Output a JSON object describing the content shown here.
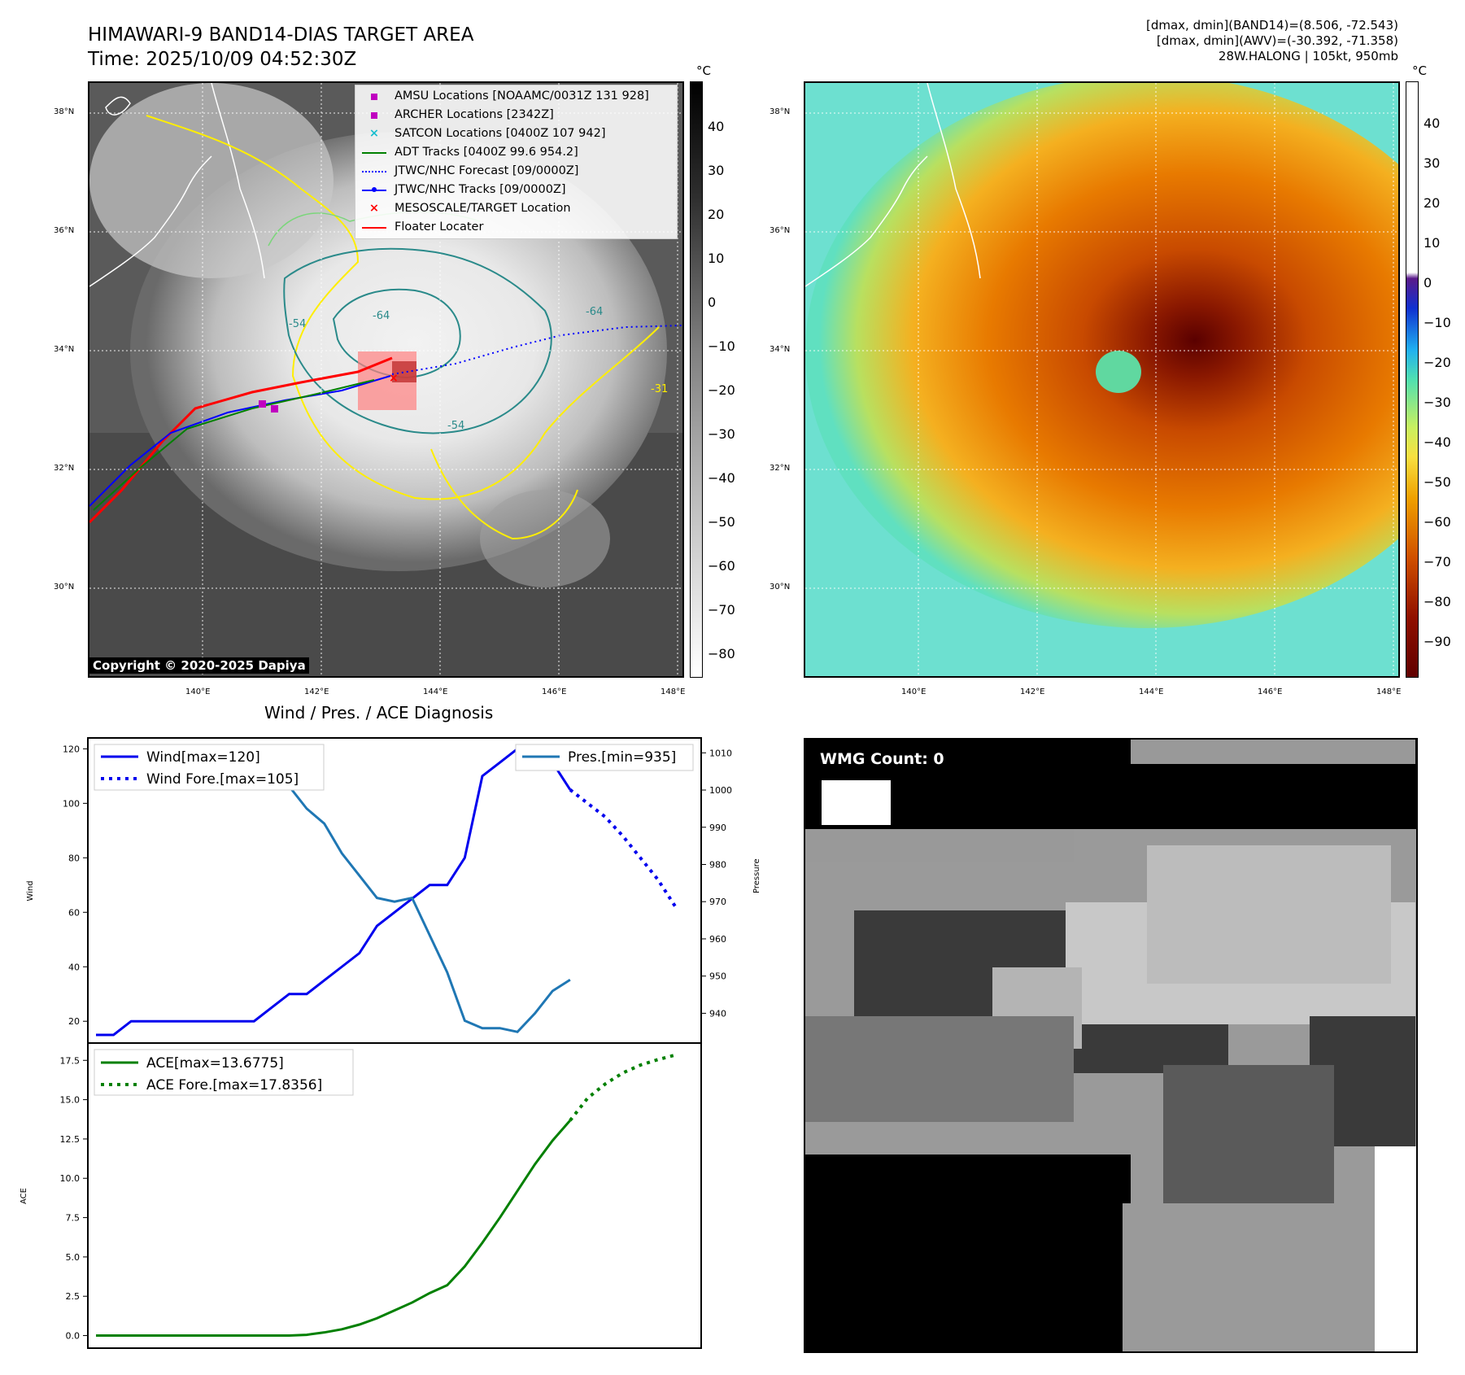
{
  "header": {
    "title_line1": "HIMAWARI-9 BAND14-DIAS TARGET AREA",
    "title_line2": "Time: 2025/10/09 04:52:30Z",
    "info_line1": "[dmax, dmin](BAND14)=(8.506, -72.543)",
    "info_line2": "[dmax, dmin](AWV)=(-30.392, -71.358)",
    "info_line3": "28W.HALONG | 105kt, 950mb"
  },
  "map": {
    "lat_labels": [
      "38°N",
      "36°N",
      "34°N",
      "32°N",
      "30°N"
    ],
    "lon_labels": [
      "140°E",
      "142°E",
      "144°E",
      "146°E",
      "148°E"
    ],
    "copyright": "Copyright © 2020-2025 Dapiya",
    "contour_labels": [
      "-64",
      "-64",
      "-54",
      "-54",
      "-31"
    ],
    "legend": [
      {
        "label": "AMSU Locations [NOAAMC/0031Z 131 928]",
        "color": "#c000c0",
        "symbol": "square"
      },
      {
        "label": "ARCHER Locations [2342Z]",
        "color": "#c000c0",
        "symbol": "square"
      },
      {
        "label": "SATCON Locations [0400Z 107 942]",
        "color": "#17becf",
        "symbol": "x"
      },
      {
        "label": "ADT Tracks [0400Z 99.6 954.2]",
        "color": "#008000",
        "symbol": "line"
      },
      {
        "label": "JTWC/NHC Forecast [09/0000Z]",
        "color": "#0000ff",
        "symbol": "dotted"
      },
      {
        "label": "JTWC/NHC Tracks [09/0000Z]",
        "color": "#0000ff",
        "symbol": "line-dot"
      },
      {
        "label": "MESOSCALE/TARGET Location",
        "color": "#ff0000",
        "symbol": "x"
      },
      {
        "label": "Floater Locater",
        "color": "#ff0000",
        "symbol": "line"
      }
    ]
  },
  "colorbar_gray": {
    "unit": "°C",
    "ticks": [
      "40",
      "30",
      "20",
      "10",
      "0",
      "−10",
      "−20",
      "−30",
      "−40",
      "−50",
      "−60",
      "−70",
      "−80"
    ]
  },
  "colorbar_color": {
    "unit": "°C",
    "ticks": [
      "40",
      "30",
      "20",
      "10",
      "0",
      "−10",
      "−20",
      "−30",
      "−40",
      "−50",
      "−60",
      "−70",
      "−80",
      "−90"
    ]
  },
  "diagnosis": {
    "title": "Wind / Pres. / ACE Diagnosis",
    "wind_axis_label": "Wind",
    "pressure_axis_label": "Pressure",
    "ace_axis_label": "ACE",
    "wind_ticks": [
      "120",
      "100",
      "80",
      "60",
      "40",
      "20"
    ],
    "pressure_ticks": [
      "1010",
      "1000",
      "990",
      "980",
      "970",
      "960",
      "950",
      "940"
    ],
    "ace_ticks": [
      "17.5",
      "15.0",
      "12.5",
      "10.0",
      "7.5",
      "5.0",
      "2.5",
      "0.0"
    ],
    "legend_wind": "Wind[max=120]",
    "legend_wind_fore": "Wind Fore.[max=105]",
    "legend_pres": "Pres.[min=935]",
    "legend_ace": "ACE[max=13.6775]",
    "legend_ace_fore": "ACE Fore.[max=17.8356]"
  },
  "wmg": {
    "badge": "WMG Count: 0"
  },
  "chart_data": [
    {
      "type": "line",
      "title": "",
      "ylabel": "Wind",
      "ylim": [
        12,
        124
      ],
      "series": [
        {
          "name": "Wind[max=120]",
          "x": [
            0,
            1,
            2,
            3,
            4,
            5,
            6,
            7,
            8,
            9,
            10,
            11,
            12,
            13,
            14,
            15,
            16,
            17,
            18,
            19,
            20,
            21,
            22,
            23,
            24,
            25,
            26,
            27
          ],
          "values": [
            15,
            15,
            20,
            20,
            20,
            20,
            20,
            20,
            20,
            20,
            25,
            30,
            30,
            35,
            40,
            45,
            55,
            60,
            65,
            70,
            70,
            80,
            110,
            115,
            120,
            120,
            115,
            105
          ]
        },
        {
          "name": "Wind Fore.[max=105]",
          "x": [
            27,
            28,
            29,
            30,
            31,
            32,
            33
          ],
          "values": [
            105,
            100,
            95,
            88,
            80,
            72,
            62
          ]
        }
      ]
    },
    {
      "type": "line",
      "title": "",
      "ylabel": "Pressure",
      "ylim": [
        932,
        1014
      ],
      "series": [
        {
          "name": "Pres.[min=935]",
          "x": [
            0,
            1,
            2,
            3,
            4,
            5,
            6,
            7,
            8,
            9,
            10,
            11,
            12,
            13,
            14,
            15,
            16,
            17,
            18,
            19,
            20,
            21,
            22,
            23,
            24,
            25,
            26,
            27
          ],
          "values": [
            1010,
            1010,
            1010,
            1011,
            1011,
            1011,
            1008,
            1007,
            1006,
            1006,
            1003,
            1001,
            995,
            991,
            983,
            977,
            971,
            970,
            971,
            961,
            951,
            938,
            936,
            936,
            935,
            940,
            946,
            949
          ]
        }
      ]
    },
    {
      "type": "line",
      "title": "",
      "ylabel": "ACE",
      "ylim": [
        -0.8,
        18.6
      ],
      "series": [
        {
          "name": "ACE[max=13.6775]",
          "x": [
            0,
            1,
            2,
            3,
            4,
            5,
            6,
            7,
            8,
            9,
            10,
            11,
            12,
            13,
            14,
            15,
            16,
            17,
            18,
            19,
            20,
            21,
            22,
            23,
            24,
            25,
            26,
            27
          ],
          "values": [
            0,
            0,
            0,
            0,
            0,
            0,
            0,
            0,
            0,
            0,
            0,
            0,
            0.05,
            0.2,
            0.4,
            0.7,
            1.1,
            1.6,
            2.1,
            2.7,
            3.2,
            4.4,
            5.9,
            7.5,
            9.2,
            10.9,
            12.4,
            13.68
          ]
        },
        {
          "name": "ACE Fore.[max=17.8356]",
          "x": [
            27,
            28,
            29,
            30,
            31,
            32,
            33
          ],
          "values": [
            13.68,
            15.1,
            16.0,
            16.7,
            17.2,
            17.55,
            17.84
          ]
        }
      ]
    }
  ]
}
